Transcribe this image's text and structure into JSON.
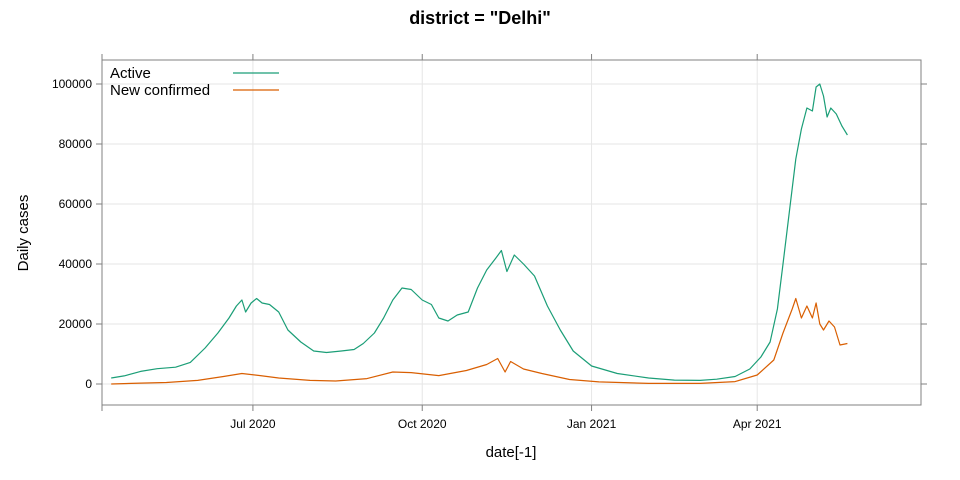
{
  "colors": {
    "active": "#1b9e77",
    "confirmed": "#d95f02",
    "grid": "#e6e6e6",
    "frame": "#808080"
  },
  "chart_data": {
    "type": "line",
    "title": "district = \"Delhi\"",
    "xlabel": "date[-1]",
    "ylabel": "Daily cases",
    "xlim": [
      "2020-04-10",
      "2021-06-29"
    ],
    "ylim": [
      -7000,
      108000
    ],
    "x_ticks": [
      {
        "label": "Jul 2020",
        "date": "2020-07-01"
      },
      {
        "label": "Oct 2020",
        "date": "2020-10-01"
      },
      {
        "label": "Jan 2021",
        "date": "2021-01-01"
      },
      {
        "label": "Apr 2021",
        "date": "2021-04-01"
      }
    ],
    "y_ticks": [
      0,
      20000,
      40000,
      60000,
      80000,
      100000
    ],
    "grid": true,
    "legend_position": "top-left",
    "series": [
      {
        "name": "Active",
        "color": "#1b9e77",
        "points": [
          [
            "2020-04-15",
            2000
          ],
          [
            "2020-04-22",
            2700
          ],
          [
            "2020-05-01",
            4200
          ],
          [
            "2020-05-10",
            5100
          ],
          [
            "2020-05-20",
            5600
          ],
          [
            "2020-05-28",
            7200
          ],
          [
            "2020-06-05",
            12000
          ],
          [
            "2020-06-12",
            17000
          ],
          [
            "2020-06-18",
            22000
          ],
          [
            "2020-06-22",
            26000
          ],
          [
            "2020-06-25",
            28000
          ],
          [
            "2020-06-27",
            24000
          ],
          [
            "2020-06-30",
            27000
          ],
          [
            "2020-07-03",
            28500
          ],
          [
            "2020-07-06",
            27000
          ],
          [
            "2020-07-10",
            26500
          ],
          [
            "2020-07-15",
            24000
          ],
          [
            "2020-07-20",
            18000
          ],
          [
            "2020-07-27",
            14000
          ],
          [
            "2020-08-03",
            11000
          ],
          [
            "2020-08-10",
            10500
          ],
          [
            "2020-08-18",
            11000
          ],
          [
            "2020-08-25",
            11500
          ],
          [
            "2020-08-30",
            13500
          ],
          [
            "2020-09-05",
            17000
          ],
          [
            "2020-09-10",
            22000
          ],
          [
            "2020-09-15",
            28000
          ],
          [
            "2020-09-20",
            32000
          ],
          [
            "2020-09-25",
            31500
          ],
          [
            "2020-10-01",
            28000
          ],
          [
            "2020-10-06",
            26500
          ],
          [
            "2020-10-10",
            22000
          ],
          [
            "2020-10-15",
            21000
          ],
          [
            "2020-10-20",
            23000
          ],
          [
            "2020-10-26",
            24000
          ],
          [
            "2020-10-31",
            32000
          ],
          [
            "2020-11-05",
            38000
          ],
          [
            "2020-11-10",
            42000
          ],
          [
            "2020-11-13",
            44500
          ],
          [
            "2020-11-16",
            37500
          ],
          [
            "2020-11-20",
            43000
          ],
          [
            "2020-11-25",
            40000
          ],
          [
            "2020-12-01",
            36000
          ],
          [
            "2020-12-08",
            26000
          ],
          [
            "2020-12-15",
            18000
          ],
          [
            "2020-12-22",
            11000
          ],
          [
            "2021-01-01",
            6000
          ],
          [
            "2021-01-15",
            3500
          ],
          [
            "2021-02-01",
            2000
          ],
          [
            "2021-02-15",
            1300
          ],
          [
            "2021-03-01",
            1200
          ],
          [
            "2021-03-10",
            1600
          ],
          [
            "2021-03-20",
            2500
          ],
          [
            "2021-03-28",
            5000
          ],
          [
            "2021-04-03",
            9000
          ],
          [
            "2021-04-08",
            14000
          ],
          [
            "2021-04-12",
            25000
          ],
          [
            "2021-04-15",
            40000
          ],
          [
            "2021-04-19",
            60000
          ],
          [
            "2021-04-22",
            75000
          ],
          [
            "2021-04-25",
            85000
          ],
          [
            "2021-04-28",
            92000
          ],
          [
            "2021-05-01",
            91000
          ],
          [
            "2021-05-03",
            99000
          ],
          [
            "2021-05-05",
            100000
          ],
          [
            "2021-05-07",
            96000
          ],
          [
            "2021-05-09",
            89000
          ],
          [
            "2021-05-11",
            92000
          ],
          [
            "2021-05-14",
            90000
          ],
          [
            "2021-05-17",
            86000
          ],
          [
            "2021-05-20",
            83000
          ]
        ]
      },
      {
        "name": "New confirmed",
        "color": "#d95f02",
        "points": [
          [
            "2020-04-15",
            0
          ],
          [
            "2020-05-01",
            300
          ],
          [
            "2020-05-15",
            500
          ],
          [
            "2020-06-01",
            1200
          ],
          [
            "2020-06-15",
            2500
          ],
          [
            "2020-06-25",
            3500
          ],
          [
            "2020-07-05",
            2800
          ],
          [
            "2020-07-15",
            2000
          ],
          [
            "2020-08-01",
            1200
          ],
          [
            "2020-08-15",
            1000
          ],
          [
            "2020-09-01",
            1800
          ],
          [
            "2020-09-15",
            4000
          ],
          [
            "2020-09-25",
            3800
          ],
          [
            "2020-10-10",
            2800
          ],
          [
            "2020-10-25",
            4500
          ],
          [
            "2020-11-05",
            6500
          ],
          [
            "2020-11-11",
            8500
          ],
          [
            "2020-11-15",
            4000
          ],
          [
            "2020-11-18",
            7500
          ],
          [
            "2020-11-25",
            5000
          ],
          [
            "2020-12-05",
            3500
          ],
          [
            "2020-12-20",
            1500
          ],
          [
            "2021-01-05",
            700
          ],
          [
            "2021-02-01",
            200
          ],
          [
            "2021-03-01",
            200
          ],
          [
            "2021-03-20",
            800
          ],
          [
            "2021-04-01",
            3000
          ],
          [
            "2021-04-10",
            8000
          ],
          [
            "2021-04-15",
            17000
          ],
          [
            "2021-04-20",
            25000
          ],
          [
            "2021-04-22",
            28500
          ],
          [
            "2021-04-25",
            22000
          ],
          [
            "2021-04-28",
            26000
          ],
          [
            "2021-05-01",
            22000
          ],
          [
            "2021-05-03",
            27000
          ],
          [
            "2021-05-05",
            20000
          ],
          [
            "2021-05-07",
            18000
          ],
          [
            "2021-05-10",
            21000
          ],
          [
            "2021-05-13",
            19000
          ],
          [
            "2021-05-16",
            13000
          ],
          [
            "2021-05-20",
            13500
          ]
        ]
      }
    ]
  }
}
